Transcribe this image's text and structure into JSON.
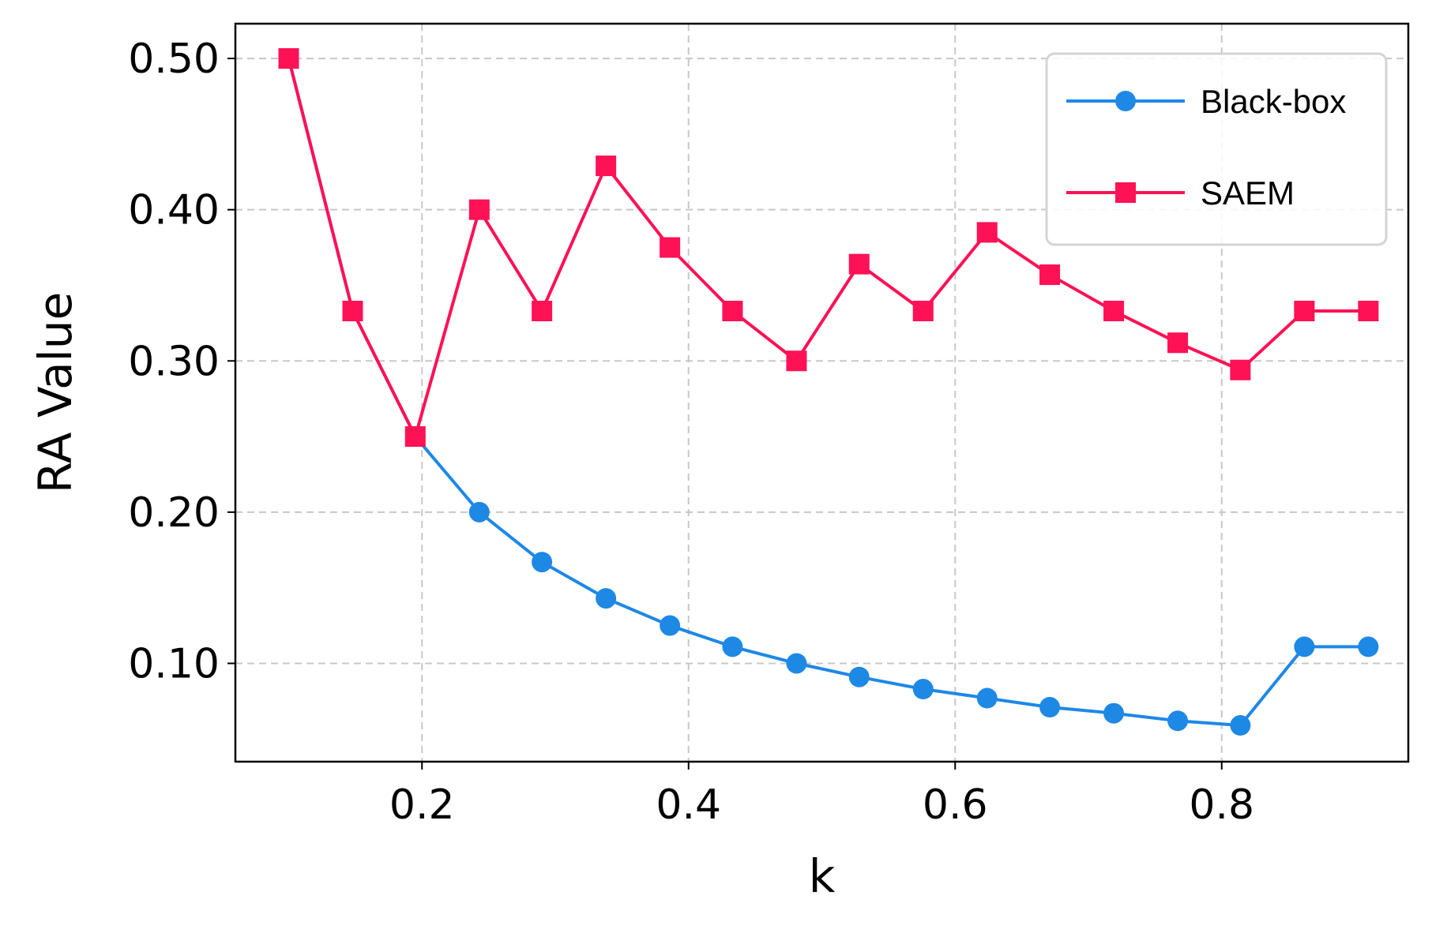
{
  "chart_data": {
    "type": "line",
    "title": "",
    "xlabel": "k",
    "ylabel": "RA Value",
    "xlim": [
      0.06,
      0.94
    ],
    "ylim": [
      0.035,
      0.523
    ],
    "xticks": [
      0.2,
      0.4,
      0.6,
      0.8
    ],
    "xtick_labels": [
      "0.2",
      "0.4",
      "0.6",
      "0.8"
    ],
    "yticks": [
      0.1,
      0.2,
      0.3,
      0.4,
      0.5
    ],
    "ytick_labels": [
      "0.10",
      "0.20",
      "0.30",
      "0.40",
      "0.50"
    ],
    "grid": true,
    "legend_position": "top-right",
    "x": [
      0.1,
      0.148,
      0.195,
      0.243,
      0.29,
      0.338,
      0.386,
      0.433,
      0.481,
      0.528,
      0.576,
      0.624,
      0.671,
      0.719,
      0.767,
      0.814,
      0.862,
      0.91
    ],
    "series": [
      {
        "name": "Black-box",
        "color": "#1e88e5",
        "marker": "circle",
        "values": [
          0.5,
          0.333,
          0.25,
          0.2,
          0.167,
          0.143,
          0.125,
          0.111,
          0.1,
          0.091,
          0.083,
          0.077,
          0.071,
          0.067,
          0.062,
          0.059,
          0.111,
          0.111
        ]
      },
      {
        "name": "SAEM",
        "color": "#ff1155",
        "marker": "square",
        "values": [
          0.5,
          0.333,
          0.25,
          0.4,
          0.333,
          0.429,
          0.375,
          0.333,
          0.3,
          0.364,
          0.333,
          0.385,
          0.357,
          0.333,
          0.312,
          0.294,
          0.333,
          0.333
        ]
      }
    ]
  }
}
